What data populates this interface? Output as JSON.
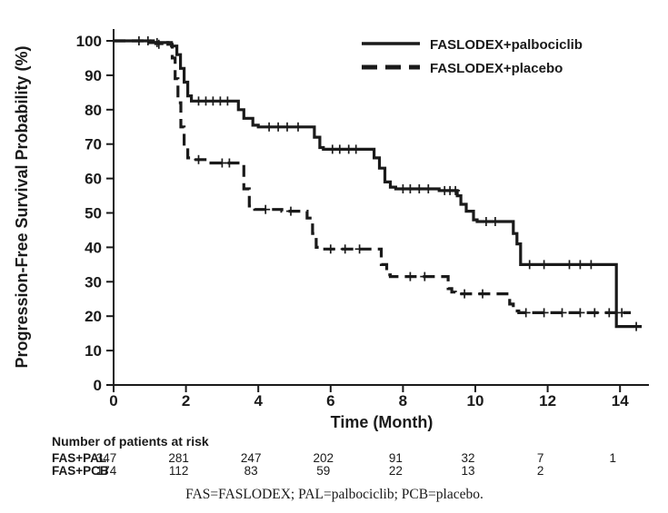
{
  "figure": {
    "xlabel": "Time (Month)",
    "ylabel": "Progression-Free Survival Probability (%)",
    "legend": [
      {
        "label": "FASLODEX+palbociclib",
        "style": "solid"
      },
      {
        "label": "FASLODEX+placebo",
        "style": "dashed"
      }
    ],
    "at_risk": {
      "header": "Number of patients at risk",
      "months": [
        0,
        2,
        4,
        6,
        8,
        10,
        12,
        14
      ],
      "rows": [
        {
          "label": "FAS+PAL",
          "counts": [
            "347",
            "281",
            "247",
            "202",
            "91",
            "32",
            "7",
            "1"
          ]
        },
        {
          "label": "FAS+PCB",
          "counts": [
            "174",
            "112",
            "83",
            "59",
            "22",
            "13",
            "2",
            ""
          ]
        }
      ]
    },
    "footnote": "FAS=FASLODEX; PAL=palbociclib; PCB=placebo."
  },
  "chart_data": {
    "type": "line",
    "subtype": "kaplan-meier-step",
    "title": "",
    "xlabel": "Time (Month)",
    "ylabel": "Progression-Free Survival Probability (%)",
    "xlim": [
      0,
      15.2
    ],
    "ylim": [
      0,
      100
    ],
    "xticks": [
      0,
      2,
      4,
      6,
      8,
      10,
      12,
      14
    ],
    "yticks": [
      0,
      10,
      20,
      30,
      40,
      50,
      60,
      70,
      80,
      90,
      100
    ],
    "grid": false,
    "legend_position": "top-right-inside",
    "line_color": "#1a1a1a",
    "series": [
      {
        "name": "FASLODEX+palbociclib",
        "style": "solid",
        "steps": [
          [
            0,
            100
          ],
          [
            1.0,
            99.5
          ],
          [
            1.6,
            98.5
          ],
          [
            1.75,
            96
          ],
          [
            1.85,
            92
          ],
          [
            1.95,
            88
          ],
          [
            2.05,
            84
          ],
          [
            2.15,
            82.5
          ],
          [
            3.35,
            82.5
          ],
          [
            3.45,
            80
          ],
          [
            3.6,
            77.5
          ],
          [
            3.85,
            75.5
          ],
          [
            4.0,
            75
          ],
          [
            5.45,
            75
          ],
          [
            5.55,
            72
          ],
          [
            5.7,
            69
          ],
          [
            5.8,
            68.5
          ],
          [
            7.1,
            68.5
          ],
          [
            7.2,
            66
          ],
          [
            7.35,
            63
          ],
          [
            7.5,
            59
          ],
          [
            7.65,
            57.5
          ],
          [
            7.8,
            57
          ],
          [
            9.0,
            56.5
          ],
          [
            9.5,
            55
          ],
          [
            9.6,
            52.5
          ],
          [
            9.75,
            50.5
          ],
          [
            9.95,
            48
          ],
          [
            10.05,
            47.5
          ],
          [
            10.95,
            47.5
          ],
          [
            11.05,
            44
          ],
          [
            11.15,
            41
          ],
          [
            11.25,
            35
          ],
          [
            13.85,
            35
          ],
          [
            13.9,
            17
          ],
          [
            14.6,
            17
          ]
        ],
        "censors": [
          [
            0.7,
            100
          ],
          [
            0.95,
            100
          ],
          [
            1.2,
            99.5
          ],
          [
            2.35,
            82.5
          ],
          [
            2.55,
            82.5
          ],
          [
            2.75,
            82.5
          ],
          [
            2.95,
            82.5
          ],
          [
            3.15,
            82.5
          ],
          [
            4.3,
            75
          ],
          [
            4.55,
            75
          ],
          [
            4.8,
            75
          ],
          [
            5.1,
            75
          ],
          [
            6.05,
            68.5
          ],
          [
            6.25,
            68.5
          ],
          [
            6.5,
            68.5
          ],
          [
            6.7,
            68.5
          ],
          [
            8.0,
            57
          ],
          [
            8.2,
            57
          ],
          [
            8.45,
            57
          ],
          [
            8.7,
            57
          ],
          [
            9.15,
            56.5
          ],
          [
            9.3,
            56.5
          ],
          [
            9.45,
            56.5
          ],
          [
            10.3,
            47.5
          ],
          [
            10.55,
            47.5
          ],
          [
            11.5,
            35
          ],
          [
            11.9,
            35
          ],
          [
            12.6,
            35
          ],
          [
            12.9,
            35
          ],
          [
            13.2,
            35
          ],
          [
            14.45,
            17
          ]
        ]
      },
      {
        "name": "FASLODEX+placebo",
        "style": "dashed",
        "steps": [
          [
            0,
            100
          ],
          [
            1.1,
            99.5
          ],
          [
            1.5,
            99
          ],
          [
            1.62,
            95
          ],
          [
            1.7,
            89
          ],
          [
            1.78,
            82
          ],
          [
            1.86,
            75
          ],
          [
            1.95,
            69
          ],
          [
            2.05,
            66
          ],
          [
            2.2,
            65.5
          ],
          [
            2.6,
            64.5
          ],
          [
            3.45,
            64.5
          ],
          [
            3.6,
            57
          ],
          [
            3.75,
            52
          ],
          [
            3.9,
            51
          ],
          [
            4.65,
            50.5
          ],
          [
            5.35,
            48.5
          ],
          [
            5.5,
            44
          ],
          [
            5.6,
            40
          ],
          [
            5.75,
            39.5
          ],
          [
            7.25,
            39.5
          ],
          [
            7.4,
            35
          ],
          [
            7.55,
            32
          ],
          [
            7.65,
            31.5
          ],
          [
            9.15,
            31.5
          ],
          [
            9.25,
            28
          ],
          [
            9.35,
            27
          ],
          [
            9.45,
            26.5
          ],
          [
            10.85,
            26.5
          ],
          [
            10.95,
            23.5
          ],
          [
            11.05,
            21.5
          ],
          [
            11.2,
            21
          ],
          [
            14.3,
            21
          ]
        ],
        "censors": [
          [
            1.25,
            99
          ],
          [
            2.35,
            65.5
          ],
          [
            3.0,
            64.5
          ],
          [
            3.2,
            64.5
          ],
          [
            4.2,
            51
          ],
          [
            4.9,
            50.5
          ],
          [
            6.0,
            39.5
          ],
          [
            6.4,
            39.5
          ],
          [
            6.8,
            39.5
          ],
          [
            8.2,
            31.5
          ],
          [
            8.6,
            31.5
          ],
          [
            9.7,
            26.5
          ],
          [
            10.2,
            26.5
          ],
          [
            11.4,
            21
          ],
          [
            11.9,
            21
          ],
          [
            12.4,
            21
          ],
          [
            12.9,
            21
          ],
          [
            13.3,
            21
          ],
          [
            13.7,
            21
          ],
          [
            14.05,
            21
          ]
        ]
      }
    ]
  }
}
